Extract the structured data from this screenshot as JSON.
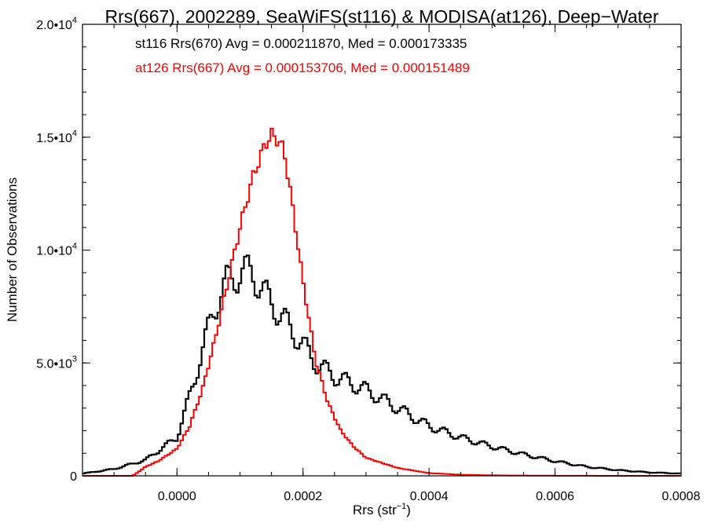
{
  "chart_data": {
    "type": "line",
    "title": "Rrs(667), 2002289, SeaWiFS(st116) & MODISA(at126), Deep−Water",
    "xlabel_main": "Rrs (str",
    "xlabel_sup": "−1",
    "xlabel_close": ")",
    "ylabel": "Number of Observations",
    "xlim": [
      -0.00015,
      0.0008
    ],
    "ylim": [
      0,
      20000
    ],
    "x_ticks": [
      {
        "value": 0.0,
        "label": "0.0000"
      },
      {
        "value": 0.0002,
        "label": "0.0002"
      },
      {
        "value": 0.0004,
        "label": "0.0004"
      },
      {
        "value": 0.0006,
        "label": "0.0006"
      },
      {
        "value": 0.0008,
        "label": "0.0008"
      }
    ],
    "y_ticks": [
      {
        "value": 0,
        "mant": "0",
        "exp": ""
      },
      {
        "value": 5000,
        "mant": "5.0•10",
        "exp": "3"
      },
      {
        "value": 10000,
        "mant": "1.0•10",
        "exp": "4"
      },
      {
        "value": 15000,
        "mant": "1.5•10",
        "exp": "4"
      },
      {
        "value": 20000,
        "mant": "2.0•10",
        "exp": "4"
      }
    ],
    "annotations": [
      {
        "text": "st116 Rrs(670) Avg = 0.000211870, Med = 0.000173335",
        "color": "#000000"
      },
      {
        "text": "at126 Rrs(667) Avg = 0.000153706, Med = 0.000151489",
        "color": "#ff0000"
      }
    ],
    "series": [
      {
        "color": "#000000",
        "x": [
          -0.00015,
          -0.0001,
          -5e-05,
          0,
          2e-05,
          4e-05,
          6e-05,
          8e-05,
          0.0001,
          0.00012,
          0.00014,
          0.00016,
          0.00018,
          0.0002,
          0.00022,
          0.00025,
          0.0003,
          0.00035,
          0.0004,
          0.00045,
          0.0005,
          0.00055,
          0.0006,
          0.00065,
          0.0007,
          0.00075,
          0.0008
        ],
        "values": [
          100,
          300,
          700,
          1700,
          3500,
          5500,
          7500,
          8600,
          9000,
          9000,
          8000,
          7300,
          6500,
          5800,
          5000,
          4400,
          3800,
          3000,
          2200,
          1700,
          1300,
          950,
          650,
          400,
          250,
          150,
          100
        ]
      },
      {
        "color": "#ff0000",
        "x": [
          -0.00015,
          -0.0001,
          -7e-05,
          -5e-05,
          -3e-05,
          0,
          2e-05,
          4e-05,
          6e-05,
          8e-05,
          0.0001,
          0.00012,
          0.00014,
          0.00015,
          0.00016,
          0.00017,
          0.00018,
          0.0002,
          0.00022,
          0.00024,
          0.00026,
          0.00028,
          0.0003,
          0.00035,
          0.0004,
          0.00045,
          0.0005,
          0.0006,
          0.0007,
          0.0008
        ],
        "values": [
          0,
          0,
          0,
          400,
          650,
          1200,
          2200,
          3800,
          6000,
          8500,
          11000,
          13200,
          14700,
          15100,
          14900,
          14400,
          12600,
          8600,
          5100,
          3200,
          2000,
          1300,
          800,
          350,
          120,
          50,
          20,
          5,
          0,
          0
        ]
      }
    ]
  }
}
